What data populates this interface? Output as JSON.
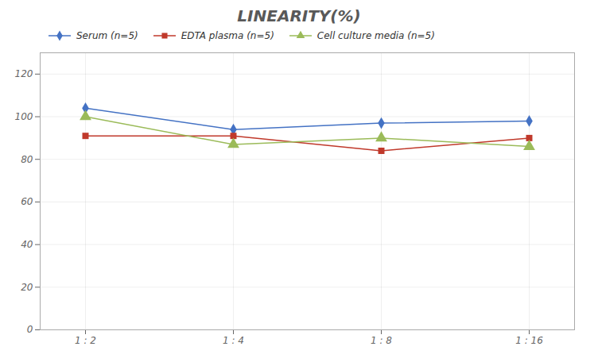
{
  "chart_data": {
    "type": "line",
    "title": "LINEARITY(%)",
    "categories": [
      "1 : 2",
      "1 : 4",
      "1 : 8",
      "1 : 16"
    ],
    "series": [
      {
        "name": "Serum (n=5)",
        "color": "#4472C4",
        "marker": "diamond",
        "values": [
          104,
          94,
          97,
          98
        ]
      },
      {
        "name": "EDTA plasma (n=5)",
        "color": "#C0392B",
        "marker": "square",
        "values": [
          91,
          91,
          84,
          90
        ]
      },
      {
        "name": "Cell culture media (n=5)",
        "color": "#9BBB59",
        "marker": "triangle",
        "values": [
          100,
          87,
          90,
          86
        ]
      }
    ],
    "ylim": [
      0,
      130
    ],
    "yticks": [
      0,
      20,
      40,
      60,
      80,
      100,
      120
    ],
    "grid": true,
    "legend": "top"
  }
}
